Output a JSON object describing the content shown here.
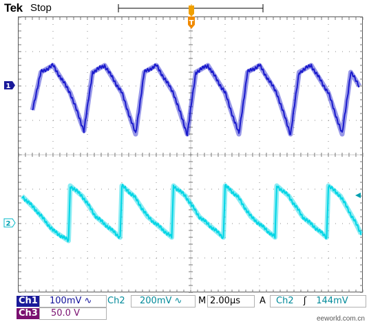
{
  "header": {
    "brand": "Tek",
    "status": "Stop",
    "trigger_marker": "T"
  },
  "channels": {
    "ch1": {
      "label": "Ch1",
      "scale": "100mV",
      "coupling": "∿",
      "marker": "1",
      "color": "#1a1acc"
    },
    "ch2": {
      "label": "Ch2",
      "scale": "200mV",
      "coupling": "∿",
      "marker": "2",
      "color": "#00d5e5"
    },
    "ch3": {
      "label": "Ch3",
      "scale": "50.0 V"
    }
  },
  "timebase": {
    "label": "M",
    "value": "2.00µs"
  },
  "trigger": {
    "label": "A",
    "source": "Ch2",
    "slope": "ʃ",
    "level": "144mV"
  },
  "watermark": "eeworld.com.cn",
  "chart_data": [
    {
      "type": "line",
      "title": "",
      "xlabel": "",
      "ylabel": "",
      "xlim": [
        -10,
        10
      ],
      "ylim": [
        -4,
        4
      ],
      "grid": true,
      "series": [
        {
          "name": "Ch1",
          "x": [
            -9.2,
            -8.7,
            -8.0,
            -7.0,
            -6.2,
            -5.7,
            -5.0,
            -4.0,
            -3.2,
            -2.7,
            -2.0,
            -1.0,
            -0.2,
            0.3,
            1.0,
            2.0,
            2.8,
            3.3,
            4.0,
            5.0,
            5.8,
            6.3,
            7.0,
            8.0,
            8.8,
            9.3,
            9.8
          ],
          "values": [
            1.3,
            2.4,
            2.6,
            1.8,
            0.7,
            2.4,
            2.6,
            1.8,
            0.6,
            2.4,
            2.6,
            1.8,
            0.6,
            2.4,
            2.6,
            1.8,
            0.6,
            2.4,
            2.6,
            1.8,
            0.6,
            2.4,
            2.6,
            1.8,
            0.6,
            2.4,
            2.0
          ]
        },
        {
          "name": "Ch2",
          "x": [
            -9.8,
            -9.0,
            -8.0,
            -7.1,
            -7.0,
            -6.3,
            -5.5,
            -4.1,
            -4.0,
            -3.3,
            -2.5,
            -1.1,
            -1.0,
            -0.3,
            0.5,
            1.9,
            2.0,
            2.7,
            3.5,
            4.9,
            5.0,
            5.7,
            6.5,
            7.9,
            8.0,
            8.7,
            9.5,
            9.9
          ],
          "values": [
            -1.2,
            -1.6,
            -2.2,
            -2.5,
            -0.9,
            -1.2,
            -1.8,
            -2.4,
            -0.9,
            -1.2,
            -1.8,
            -2.4,
            -0.9,
            -1.2,
            -1.8,
            -2.4,
            -0.9,
            -1.2,
            -1.8,
            -2.4,
            -0.9,
            -1.2,
            -1.8,
            -2.4,
            -0.9,
            -1.2,
            -1.9,
            -2.3
          ]
        }
      ]
    }
  ]
}
